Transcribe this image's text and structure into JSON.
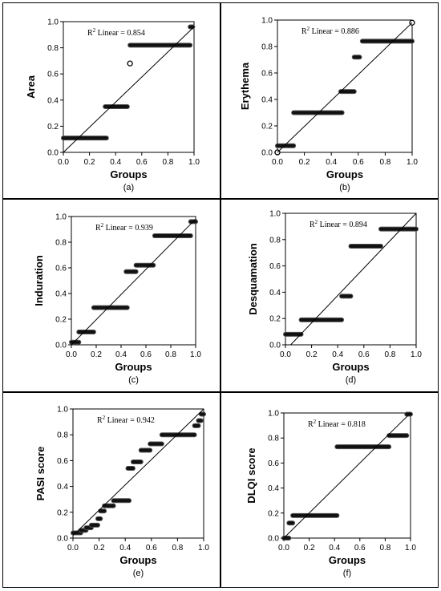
{
  "chart_data": [
    {
      "type": "scatter",
      "panel_label": "(a)",
      "ylabel": "Area",
      "xlabel": "Groups",
      "r2_label": "R",
      "r2_sup": "2",
      "r2_text": "Linear = 0.854",
      "xlim": [
        0,
        1
      ],
      "ylim": [
        0,
        1
      ],
      "xticks": [
        "0.0",
        "0.2",
        "0.4",
        "0.6",
        "0.8",
        "1.0"
      ],
      "yticks": [
        "0.0",
        "0.2",
        "0.4",
        "0.6",
        "0.8",
        "1.0"
      ],
      "fit_line": [
        [
          0.0,
          0.0
        ],
        [
          1.0,
          0.96
        ]
      ],
      "segments": [
        {
          "x0": 0.0,
          "x1": 0.33,
          "y": 0.11
        },
        {
          "x0": 0.32,
          "x1": 0.49,
          "y": 0.35
        },
        {
          "x0": 0.51,
          "x1": 0.97,
          "y": 0.82
        },
        {
          "x0": 0.97,
          "x1": 0.99,
          "y": 0.96
        }
      ],
      "open_points": [
        {
          "x": 0.51,
          "y": 0.68
        }
      ]
    },
    {
      "type": "scatter",
      "panel_label": "(b)",
      "ylabel": "Erythema",
      "xlabel": "Groups",
      "r2_label": "R",
      "r2_sup": "2",
      "r2_text": "Linear = 0.886",
      "xlim": [
        0,
        1
      ],
      "ylim": [
        0,
        1
      ],
      "xticks": [
        "0.0",
        "0.2",
        "0.4",
        "0.6",
        "0.8",
        "1.0"
      ],
      "yticks": [
        "0.0",
        "0.2",
        "0.4",
        "0.6",
        "0.8",
        "1.0"
      ],
      "fit_line": [
        [
          0.0,
          0.0
        ],
        [
          1.0,
          0.98
        ]
      ],
      "segments": [
        {
          "x0": 0.0,
          "x1": 0.12,
          "y": 0.05
        },
        {
          "x0": 0.12,
          "x1": 0.48,
          "y": 0.3
        },
        {
          "x0": 0.47,
          "x1": 0.57,
          "y": 0.46
        },
        {
          "x0": 0.57,
          "x1": 0.61,
          "y": 0.72
        },
        {
          "x0": 0.63,
          "x1": 1.0,
          "y": 0.84
        }
      ],
      "open_points": [
        {
          "x": 0.0,
          "y": 0.0
        },
        {
          "x": 1.0,
          "y": 0.98
        }
      ]
    },
    {
      "type": "scatter",
      "panel_label": "(c)",
      "ylabel": "Induration",
      "xlabel": "Groups",
      "r2_label": "R",
      "r2_sup": "2",
      "r2_text": "Linear = 0.939",
      "xlim": [
        0,
        1
      ],
      "ylim": [
        0,
        1
      ],
      "xticks": [
        "0.0",
        "0.2",
        "0.4",
        "0.6",
        "0.8",
        "1.0"
      ],
      "yticks": [
        "0.0",
        "0.2",
        "0.4",
        "0.6",
        "0.8",
        "1.0"
      ],
      "fit_line": [
        [
          0.0,
          0.0
        ],
        [
          1.0,
          0.98
        ]
      ],
      "segments": [
        {
          "x0": 0.0,
          "x1": 0.06,
          "y": 0.02
        },
        {
          "x0": 0.06,
          "x1": 0.18,
          "y": 0.1
        },
        {
          "x0": 0.18,
          "x1": 0.45,
          "y": 0.29
        },
        {
          "x0": 0.44,
          "x1": 0.52,
          "y": 0.57
        },
        {
          "x0": 0.52,
          "x1": 0.66,
          "y": 0.62
        },
        {
          "x0": 0.67,
          "x1": 0.96,
          "y": 0.85
        },
        {
          "x0": 0.96,
          "x1": 1.0,
          "y": 0.96
        }
      ],
      "open_points": []
    },
    {
      "type": "scatter",
      "panel_label": "(d)",
      "ylabel": "Desquamation",
      "xlabel": "Groups",
      "r2_label": "R",
      "r2_sup": "2",
      "r2_text": "Linear = 0.894",
      "xlim": [
        0,
        1
      ],
      "ylim": [
        0,
        1
      ],
      "xticks": [
        "0.0",
        "0.2",
        "0.4",
        "0.6",
        "0.8",
        "1.0"
      ],
      "yticks": [
        "0.0",
        "0.2",
        "0.4",
        "0.6",
        "0.8",
        "1.0"
      ],
      "fit_line": [
        [
          0.04,
          0.0
        ],
        [
          1.0,
          1.0
        ]
      ],
      "segments": [
        {
          "x0": 0.0,
          "x1": 0.12,
          "y": 0.08
        },
        {
          "x0": 0.12,
          "x1": 0.43,
          "y": 0.19
        },
        {
          "x0": 0.43,
          "x1": 0.5,
          "y": 0.37
        },
        {
          "x0": 0.5,
          "x1": 0.73,
          "y": 0.75
        },
        {
          "x0": 0.73,
          "x1": 1.0,
          "y": 0.88
        }
      ],
      "open_points": []
    },
    {
      "type": "scatter",
      "panel_label": "(e)",
      "ylabel": "PASI score",
      "xlabel": "Groups",
      "r2_label": "R",
      "r2_sup": "2",
      "r2_text": "Linear = 0.942",
      "xlim": [
        0,
        1
      ],
      "ylim": [
        0,
        1
      ],
      "xticks": [
        "0.0",
        "0.2",
        "0.4",
        "0.6",
        "0.8",
        "1.0"
      ],
      "yticks": [
        "0.0",
        "0.2",
        "0.4",
        "0.6",
        "0.8",
        "1.0"
      ],
      "fit_line": [
        [
          0.0,
          0.02
        ],
        [
          1.0,
          1.0
        ]
      ],
      "segments": [
        {
          "x0": 0.0,
          "x1": 0.06,
          "y": 0.04
        },
        {
          "x0": 0.06,
          "x1": 0.1,
          "y": 0.06
        },
        {
          "x0": 0.1,
          "x1": 0.14,
          "y": 0.08
        },
        {
          "x0": 0.14,
          "x1": 0.19,
          "y": 0.1
        },
        {
          "x0": 0.19,
          "x1": 0.21,
          "y": 0.15
        },
        {
          "x0": 0.21,
          "x1": 0.24,
          "y": 0.21
        },
        {
          "x0": 0.24,
          "x1": 0.31,
          "y": 0.25
        },
        {
          "x0": 0.31,
          "x1": 0.43,
          "y": 0.29
        },
        {
          "x0": 0.42,
          "x1": 0.46,
          "y": 0.54
        },
        {
          "x0": 0.46,
          "x1": 0.52,
          "y": 0.59
        },
        {
          "x0": 0.52,
          "x1": 0.59,
          "y": 0.68
        },
        {
          "x0": 0.59,
          "x1": 0.68,
          "y": 0.73
        },
        {
          "x0": 0.68,
          "x1": 0.93,
          "y": 0.8
        },
        {
          "x0": 0.93,
          "x1": 0.96,
          "y": 0.87
        },
        {
          "x0": 0.96,
          "x1": 0.98,
          "y": 0.91
        },
        {
          "x0": 0.98,
          "x1": 1.0,
          "y": 0.96
        }
      ],
      "open_points": []
    },
    {
      "type": "scatter",
      "panel_label": "(f)",
      "ylabel": "DLQI score",
      "xlabel": "Groups",
      "r2_label": "R",
      "r2_sup": "2",
      "r2_text": "Linear = 0.818",
      "xlim": [
        0,
        1
      ],
      "ylim": [
        0,
        1
      ],
      "xticks": [
        "0.0",
        "0.2",
        "0.4",
        "0.6",
        "0.8",
        "1.0"
      ],
      "yticks": [
        "0.0",
        "0.2",
        "0.4",
        "0.6",
        "0.8",
        "1.0"
      ],
      "fit_line": [
        [
          0.0,
          0.0
        ],
        [
          1.0,
          1.0
        ]
      ],
      "segments": [
        {
          "x0": 0.0,
          "x1": 0.04,
          "y": 0.0
        },
        {
          "x0": 0.04,
          "x1": 0.07,
          "y": 0.12
        },
        {
          "x0": 0.07,
          "x1": 0.42,
          "y": 0.18
        },
        {
          "x0": 0.42,
          "x1": 0.83,
          "y": 0.73
        },
        {
          "x0": 0.83,
          "x1": 0.97,
          "y": 0.82
        },
        {
          "x0": 0.97,
          "x1": 1.0,
          "y": 0.99
        }
      ],
      "open_points": []
    }
  ]
}
